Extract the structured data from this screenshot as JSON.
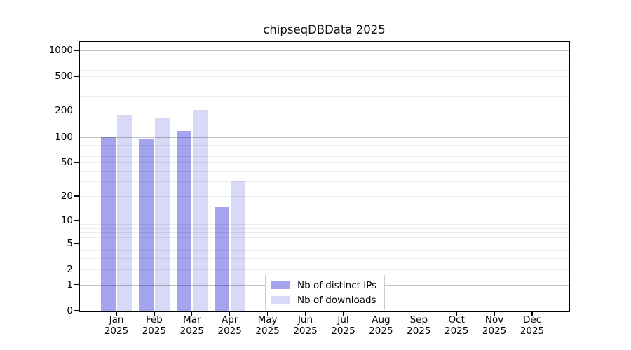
{
  "chart_data": {
    "type": "bar",
    "title": "chipseqDBData 2025",
    "x_tick_year": "2025",
    "categories": [
      "Jan",
      "Feb",
      "Mar",
      "Apr",
      "May",
      "Jun",
      "Jul",
      "Aug",
      "Sep",
      "Oct",
      "Nov",
      "Dec"
    ],
    "series": [
      {
        "name": "Nb of distinct IPs",
        "color": "#a3a3ee",
        "values": [
          100,
          94,
          117,
          15,
          null,
          null,
          null,
          null,
          null,
          null,
          null,
          null
        ]
      },
      {
        "name": "Nb of downloads",
        "color": "#d8d8f7",
        "values": [
          180,
          165,
          205,
          30,
          null,
          null,
          null,
          null,
          null,
          null,
          null,
          null
        ]
      }
    ],
    "yticks": [
      0,
      1,
      2,
      5,
      10,
      20,
      50,
      100,
      200,
      500,
      1000
    ],
    "scale": "log1p",
    "ylim": [
      0,
      1250
    ],
    "grid": true,
    "legend_position": "bottom-center"
  }
}
